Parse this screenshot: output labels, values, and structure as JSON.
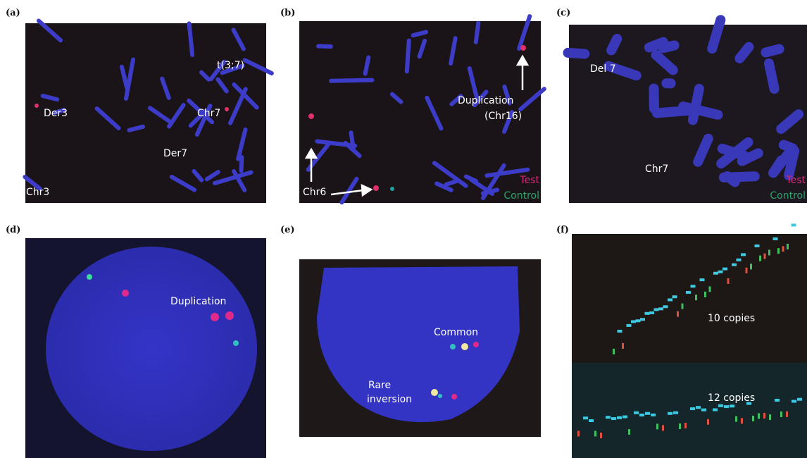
{
  "panels": [
    {
      "label": "(a)",
      "annotations": [
        "t(3;7)",
        "Der3",
        "Chr7",
        "Der7",
        "Chr3"
      ]
    },
    {
      "label": "(b)",
      "annotations": [
        "Duplication",
        "(Chr16)",
        "Chr6",
        "Test",
        "Control"
      ]
    },
    {
      "label": "(c)",
      "annotations": [
        "Del 7",
        "Chr7",
        "Test",
        "Control"
      ]
    },
    {
      "label": "(d)",
      "annotations": [
        "Duplication"
      ]
    },
    {
      "label": "(e)",
      "annotations": [
        "Common",
        "Rare",
        "inversion"
      ]
    },
    {
      "label": "(f)",
      "annotations": [
        "10 copies",
        "12 copies"
      ]
    }
  ]
}
